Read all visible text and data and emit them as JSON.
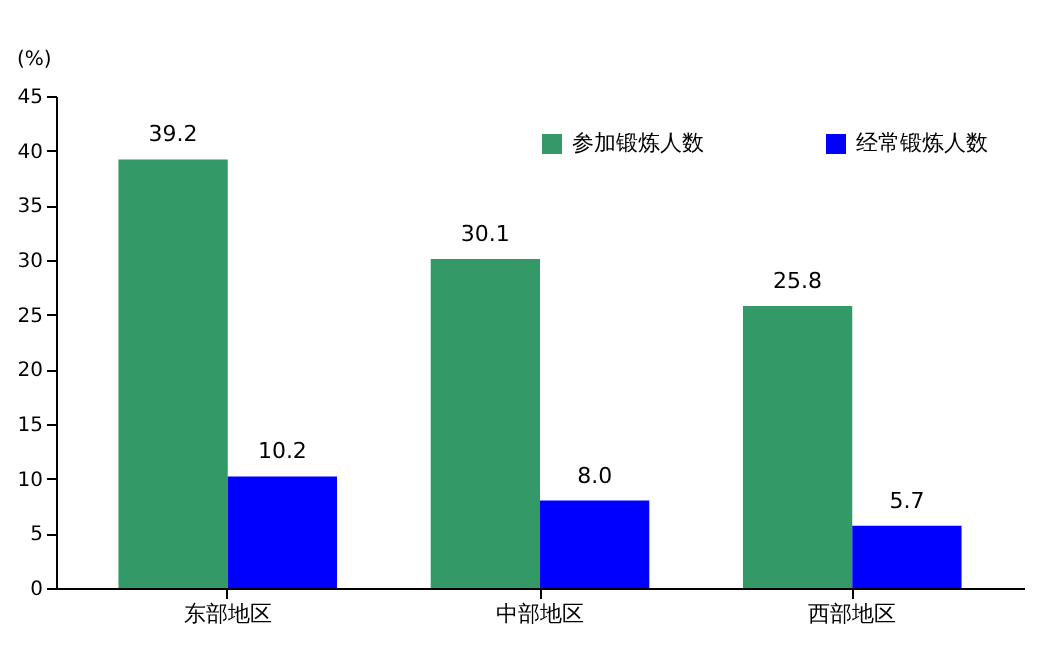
{
  "chart_data": {
    "type": "bar",
    "ylabel": "(%)",
    "categories": [
      "东部地区",
      "中部地区",
      "西部地区"
    ],
    "series": [
      {
        "name": "参加锻炼人数",
        "color": "#339966",
        "values": [
          39.2,
          30.1,
          25.8
        ]
      },
      {
        "name": "经常锻炼人数",
        "color": "#0000ff",
        "values": [
          10.2,
          8.0,
          5.7
        ]
      }
    ],
    "value_labels": [
      [
        "39.2",
        "30.1",
        "25.8"
      ],
      [
        "10.2",
        "8.0",
        "5.7"
      ]
    ],
    "ylim": [
      0,
      45
    ],
    "yticks": [
      0,
      5,
      10,
      15,
      20,
      25,
      30,
      35,
      40,
      45
    ],
    "grid": false,
    "legend": "top right"
  }
}
